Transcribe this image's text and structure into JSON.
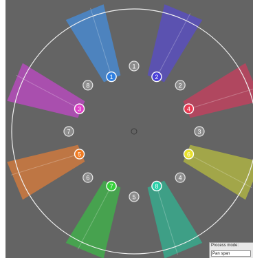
{
  "colors": {
    "background": "#646464",
    "ring_stroke": "#f0f0f0",
    "speaker_node_fill": "#8c8c8c",
    "speaker_node_stroke": "#e6e6e6"
  },
  "speakers": [
    {
      "label": "1",
      "angle_deg": 0
    },
    {
      "label": "2",
      "angle_deg": 45
    },
    {
      "label": "3",
      "angle_deg": 90
    },
    {
      "label": "4",
      "angle_deg": 135
    },
    {
      "label": "5",
      "angle_deg": 180
    },
    {
      "label": "6",
      "angle_deg": 225
    },
    {
      "label": "7",
      "angle_deg": 270
    },
    {
      "label": "8",
      "angle_deg": 315
    }
  ],
  "sources": [
    {
      "label": "1",
      "angle_deg": -22.5,
      "color": "#4a86c8",
      "node_color": "#2f7fe0"
    },
    {
      "label": "2",
      "angle_deg": 22.5,
      "color": "#5a50b8",
      "node_color": "#4a3fd8"
    },
    {
      "label": "4",
      "angle_deg": 67.5,
      "color": "#b8445e",
      "node_color": "#e83a52"
    },
    {
      "label": "6",
      "angle_deg": 112.5,
      "color": "#a8ad46",
      "node_color": "#e8e02a"
    },
    {
      "label": "8",
      "angle_deg": 157.5,
      "color": "#3aa58a",
      "node_color": "#2ad0a8"
    },
    {
      "label": "7",
      "angle_deg": -157.5,
      "color": "#44a84c",
      "node_color": "#36d03a"
    },
    {
      "label": "5",
      "angle_deg": -112.5,
      "color": "#c87840",
      "node_color": "#f07a20"
    },
    {
      "label": "3",
      "angle_deg": -67.5,
      "color": "#b04cb6",
      "node_color": "#e040c8"
    }
  ],
  "mode_panel": {
    "title": "Process mode:",
    "selected": "Pan span"
  }
}
